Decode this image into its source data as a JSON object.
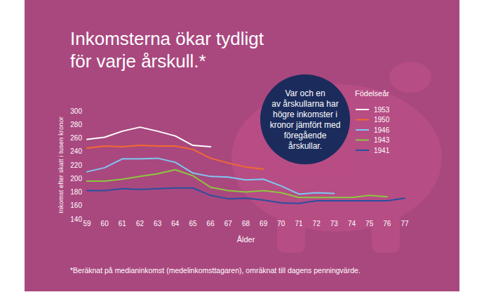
{
  "chart_data": {
    "type": "line",
    "title": "Inkomsterna ökar tydligt\nför varje årskull.*",
    "annotation": "Var och en\nav årskullarna har\nhögre inkomster i\nkronor jämfört med\nföregående\nårskullar.",
    "footnote": "*Beräknat på medianinkomst (medelinkomsttagaren), omräknat till dagens penningvärde.",
    "xlabel": "Ålder",
    "ylabel": "Inkomst efter skatt i tusen kronor",
    "legend_title": "Födelseår",
    "legend": "right",
    "grid": false,
    "x": [
      59,
      60,
      61,
      62,
      63,
      64,
      65,
      66,
      67,
      68,
      69,
      70,
      71,
      72,
      73,
      74,
      75,
      76,
      77
    ],
    "xlim": [
      59,
      77
    ],
    "xticks": [
      59,
      60,
      61,
      62,
      63,
      64,
      65,
      66,
      67,
      68,
      69,
      70,
      71,
      72,
      73,
      74,
      75,
      76,
      77
    ],
    "ylim": [
      140,
      300
    ],
    "yticks": [
      140,
      160,
      180,
      200,
      220,
      240,
      260,
      280,
      300
    ],
    "series": [
      {
        "name": "1953",
        "color": "#ffffff",
        "values": [
          258,
          261,
          270,
          276,
          270,
          263,
          249,
          247,
          null,
          null,
          null,
          null,
          null,
          null,
          null,
          null,
          null,
          null,
          null
        ]
      },
      {
        "name": "1950",
        "color": "#f26a2e",
        "values": [
          245,
          248,
          247,
          249,
          248,
          248,
          243,
          230,
          223,
          217,
          214,
          null,
          null,
          null,
          null,
          null,
          null,
          null,
          null
        ]
      },
      {
        "name": "1946",
        "color": "#7ec8f0",
        "values": [
          210,
          216,
          229,
          229,
          230,
          224,
          208,
          203,
          202,
          198,
          199,
          189,
          177,
          179,
          178,
          null,
          null,
          null,
          null
        ]
      },
      {
        "name": "1943",
        "color": "#8dc63f",
        "values": [
          196,
          196,
          199,
          203,
          207,
          213,
          204,
          187,
          182,
          180,
          182,
          179,
          172,
          172,
          172,
          172,
          175,
          173,
          null
        ]
      },
      {
        "name": "1941",
        "color": "#2a4fa0",
        "values": [
          182,
          182,
          185,
          184,
          185,
          186,
          186,
          175,
          170,
          171,
          168,
          164,
          163,
          167,
          167,
          167,
          167,
          167,
          171
        ]
      }
    ]
  }
}
